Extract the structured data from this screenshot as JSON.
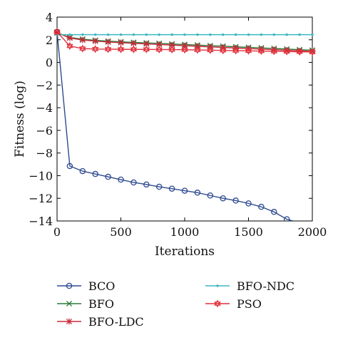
{
  "chart_data": {
    "type": "line",
    "title": "",
    "xlabel": "Iterations",
    "ylabel": "Fitness (log)",
    "xlim": [
      0,
      2000
    ],
    "ylim": [
      -14,
      4
    ],
    "xticks": [
      0,
      500,
      1000,
      1500,
      2000
    ],
    "yticks": [
      4,
      2,
      0,
      -2,
      -4,
      -6,
      -8,
      -10,
      -12,
      -14
    ],
    "xtick_labels": [
      "0",
      "500",
      "1000",
      "1500",
      "2000"
    ],
    "ytick_labels": [
      "4",
      "2",
      "0",
      "−2",
      "−4",
      "−6",
      "−8",
      "−10",
      "−12",
      "−14"
    ],
    "grid": false,
    "legend_position": "below",
    "series": [
      {
        "name": "BCO",
        "color": "#2e4a8f",
        "marker": "circle",
        "x": [
          0,
          100,
          200,
          300,
          400,
          500,
          600,
          700,
          800,
          900,
          1000,
          1100,
          1200,
          1300,
          1400,
          1500,
          1600,
          1700,
          1800,
          1850
        ],
        "y": [
          2.7,
          -9.15,
          -9.6,
          -9.85,
          -10.1,
          -10.35,
          -10.6,
          -10.78,
          -10.98,
          -11.15,
          -11.33,
          -11.5,
          -11.75,
          -12.0,
          -12.2,
          -12.45,
          -12.75,
          -13.2,
          -13.85,
          -14.0
        ]
      },
      {
        "name": "BFO",
        "color": "#2d7a3a",
        "marker": "x",
        "x": [
          0,
          100,
          200,
          300,
          400,
          500,
          600,
          700,
          800,
          900,
          1000,
          1100,
          1200,
          1300,
          1400,
          1500,
          1600,
          1700,
          1800,
          1900,
          2000
        ],
        "y": [
          2.6,
          2.2,
          2.05,
          1.95,
          1.88,
          1.82,
          1.77,
          1.72,
          1.68,
          1.63,
          1.58,
          1.53,
          1.48,
          1.43,
          1.38,
          1.33,
          1.28,
          1.23,
          1.18,
          1.12,
          1.08
        ]
      },
      {
        "name": "BFO-LDC",
        "color": "#c8283a",
        "marker": "asterisk",
        "x": [
          0,
          100,
          200,
          300,
          400,
          500,
          600,
          700,
          800,
          900,
          1000,
          1100,
          1200,
          1300,
          1400,
          1500,
          1600,
          1700,
          1800,
          1900,
          2000
        ],
        "y": [
          2.65,
          2.15,
          1.98,
          1.88,
          1.8,
          1.74,
          1.68,
          1.63,
          1.58,
          1.53,
          1.48,
          1.42,
          1.37,
          1.32,
          1.27,
          1.22,
          1.17,
          1.12,
          1.07,
          1.02,
          0.97
        ]
      },
      {
        "name": "BFO-NDC",
        "color": "#3bb8c0",
        "marker": "dot",
        "x": [
          0,
          100,
          200,
          300,
          400,
          500,
          600,
          700,
          800,
          900,
          1000,
          1100,
          1200,
          1300,
          1400,
          1500,
          1600,
          1700,
          1800,
          1900,
          2000
        ],
        "y": [
          2.45,
          2.45,
          2.45,
          2.45,
          2.45,
          2.45,
          2.45,
          2.45,
          2.45,
          2.45,
          2.45,
          2.45,
          2.45,
          2.45,
          2.45,
          2.45,
          2.45,
          2.45,
          2.45,
          2.45,
          2.45
        ]
      },
      {
        "name": "PSO",
        "color": "#e0303a",
        "marker": "hexagram",
        "x": [
          0,
          100,
          200,
          300,
          400,
          500,
          600,
          700,
          800,
          900,
          1000,
          1100,
          1200,
          1300,
          1400,
          1500,
          1600,
          1700,
          1800,
          1900,
          2000
        ],
        "y": [
          2.7,
          1.45,
          1.22,
          1.18,
          1.17,
          1.16,
          1.15,
          1.15,
          1.14,
          1.13,
          1.12,
          1.1,
          1.08,
          1.06,
          1.04,
          1.02,
          1.0,
          0.98,
          0.96,
          0.94,
          0.92
        ]
      }
    ]
  }
}
